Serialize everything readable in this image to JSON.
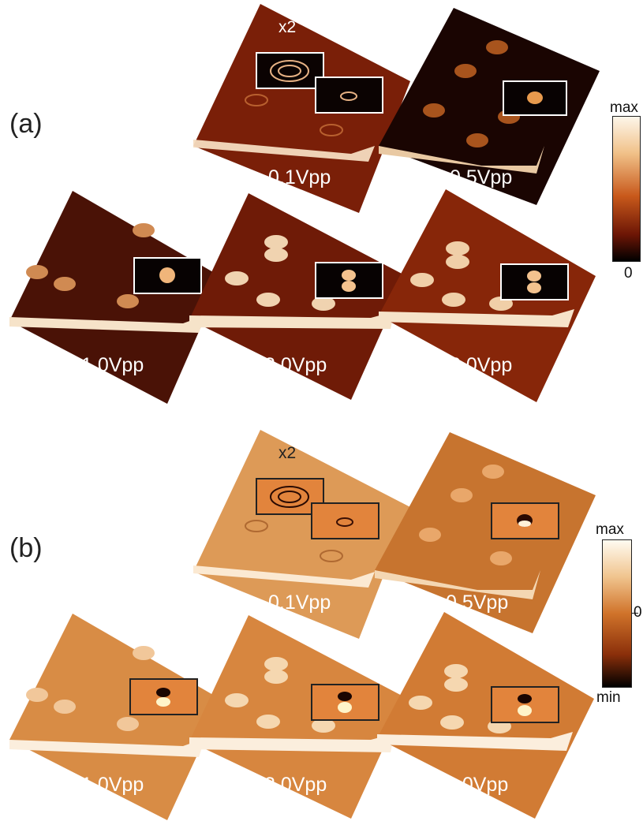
{
  "panels": [
    {
      "id": "a",
      "label": "(a)",
      "zoom_label": "x2",
      "colormap": {
        "top": "#fdf6ea",
        "mid": "#c8591b",
        "bottom": "#000000"
      },
      "colorbar": {
        "max_label": "max",
        "min_label": "0"
      },
      "tiles": [
        {
          "caption": "0.1Vpp"
        },
        {
          "caption": "0.5Vpp"
        },
        {
          "caption": "1.0Vpp"
        },
        {
          "caption": "2.0Vpp"
        },
        {
          "caption": "3.0Vpp"
        }
      ]
    },
    {
      "id": "b",
      "label": "(b)",
      "zoom_label": "x2",
      "colormap": {
        "top": "#fffbf1",
        "mid": "#d0732a",
        "bottom": "#000000"
      },
      "colorbar": {
        "max_label": "max",
        "zero_label": "0",
        "min_label": "min"
      },
      "tiles": [
        {
          "caption": "0.1Vpp"
        },
        {
          "caption": "0.5Vpp"
        },
        {
          "caption": "1.0Vpp"
        },
        {
          "caption": "2.0Vpp"
        },
        {
          "caption": "3.0Vpp"
        }
      ]
    }
  ]
}
